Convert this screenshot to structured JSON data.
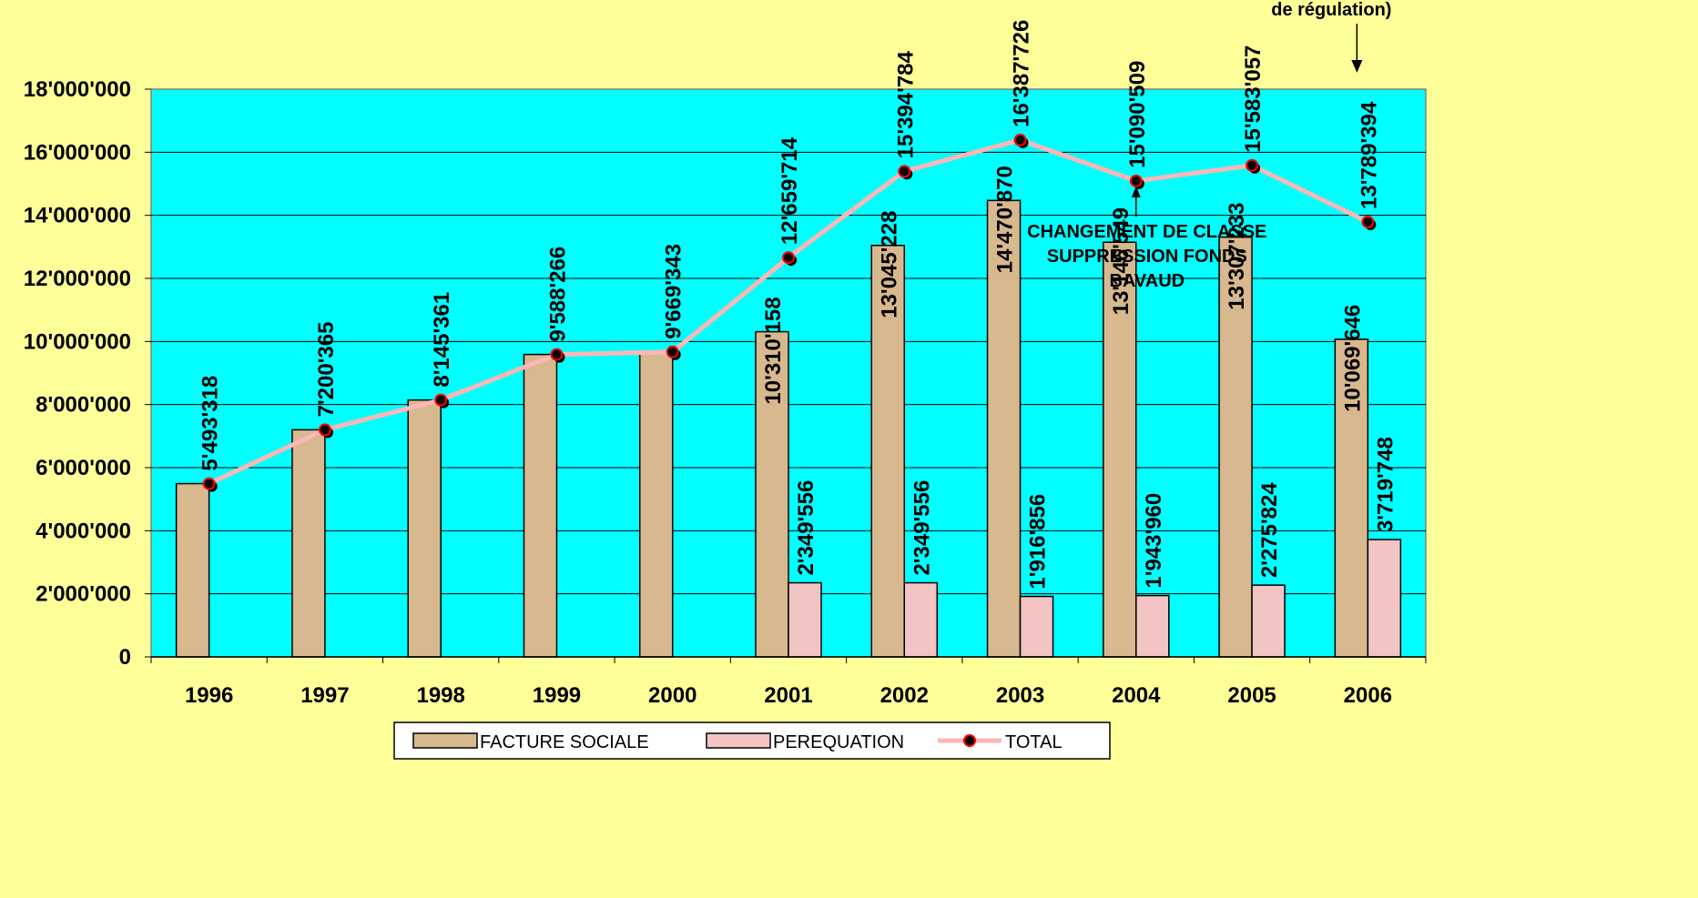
{
  "chart_data": {
    "type": "bar",
    "categories": [
      "1996",
      "1997",
      "1998",
      "1999",
      "2000",
      "2001",
      "2002",
      "2003",
      "2004",
      "2005",
      "2006"
    ],
    "series": [
      {
        "name": "FACTURE SOCIALE",
        "type": "bar",
        "values": [
          5493318,
          7200365,
          8145361,
          9588266,
          9669343,
          10310158,
          13045228,
          14470870,
          13146549,
          13307233,
          10069646
        ],
        "labels": [
          "",
          "",
          "",
          "",
          "",
          "10'310'158",
          "13'045'228",
          "14'470'870",
          "13'146'549",
          "13'307'233",
          "10'069'646"
        ],
        "color": "#d8b88e"
      },
      {
        "name": "PEREQUATION",
        "type": "bar",
        "values": [
          0,
          0,
          0,
          0,
          0,
          2349556,
          2349556,
          1916856,
          1943960,
          2275824,
          3719748
        ],
        "labels": [
          "",
          "",
          "",
          "",
          "",
          "2'349'556",
          "2'349'556",
          "1'916'856",
          "1'943'960",
          "2'275'824",
          "3'719'748"
        ],
        "color": "#f2c4c4"
      },
      {
        "name": "TOTAL",
        "type": "line",
        "values": [
          5493318,
          7200365,
          8145361,
          9588266,
          9669343,
          12659714,
          15394784,
          16387726,
          15090509,
          15583057,
          13789394
        ],
        "labels": [
          "5'493'318",
          "7'200'365",
          "8'145'361",
          "9'588'266",
          "9'669'343",
          "12'659'714",
          "15'394'784",
          "16'387'726",
          "15'090'509",
          "15'583'057",
          "13'789'394"
        ],
        "color": "#ffb6b6"
      }
    ],
    "ylim": [
      0,
      18000000
    ],
    "yticks": [
      "0",
      "2'000'000",
      "4'000'000",
      "6'000'000",
      "8'000'000",
      "10'000'000",
      "12'000'000",
      "14'000'000",
      "16'000'000",
      "18'000'000"
    ],
    "grid": true,
    "legend_position": "bottom",
    "annotations": [
      {
        "category": "2004",
        "lines": [
          "CHANGEMENT DE CLASSE",
          "SUPPRESSION FONDS",
          "BAVAUD"
        ]
      },
      {
        "category": "2006",
        "lines": [
          "de régulation)"
        ]
      }
    ],
    "colors": {
      "page_background": "#ffff99",
      "plot_background": "#00ffff",
      "marker_fill": "#000000",
      "marker_edge": "#ff0000"
    }
  }
}
